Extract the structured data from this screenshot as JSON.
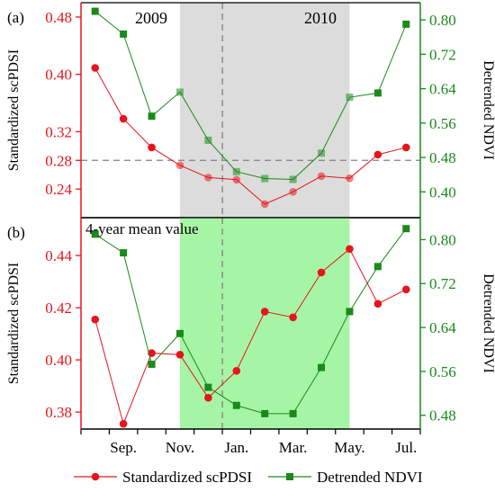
{
  "colors": {
    "pdsi": "#e8141c",
    "ndvi": "#1a8a1a",
    "shade_a": "#dcdcdc",
    "shade_b": "#a6f5a6",
    "ref_line": "#808080"
  },
  "shared": {
    "xtick_labels": [
      "Sep.",
      "Nov.",
      "Jan.",
      "Mar.",
      "May.",
      "Jul."
    ],
    "legend": {
      "pdsi": "Standardized  scPDSI",
      "ndvi": "Detrended  NDVI"
    }
  },
  "chart_data": [
    {
      "type": "line",
      "panel_label": "(a)",
      "ylabel_left": "Standardized  scPDSI",
      "ylabel_right": "Detrended NDVI",
      "ylim_left": [
        0.2,
        0.5
      ],
      "ylim_right": [
        0.34,
        0.84
      ],
      "yticks_left": [
        "0.24",
        "0.28",
        "0.32",
        "0.40",
        "0.48"
      ],
      "yticks_right": [
        "0.40",
        "0.48",
        "0.56",
        "0.64",
        "0.72",
        "0.80"
      ],
      "xticks": [
        "Sep.",
        "Nov.",
        "Jan.",
        "Mar.",
        "May.",
        "Jul."
      ],
      "annotations": [
        "2009",
        "2010"
      ],
      "shaded_range": [
        "Nov.",
        "May."
      ],
      "ref_hline_left": 0.28,
      "ref_vline": "Dec.",
      "categories": [
        "Aug.",
        "Sep.",
        "Oct.",
        "Nov.",
        "Dec.",
        "Jan.",
        "Feb.",
        "Mar.",
        "Apr.",
        "May.",
        "Jun.",
        "Jul."
      ],
      "series": [
        {
          "name": "Standardized  scPDSI",
          "axis": "left",
          "values": [
            0.409,
            0.338,
            0.298,
            0.273,
            0.256,
            0.253,
            0.219,
            0.236,
            0.258,
            0.255,
            0.288,
            0.298
          ]
        },
        {
          "name": "Detrended  NDVI",
          "axis": "right",
          "values": [
            0.82,
            0.767,
            0.576,
            0.632,
            0.52,
            0.447,
            0.431,
            0.429,
            0.49,
            0.62,
            0.63,
            0.79
          ]
        }
      ]
    },
    {
      "type": "line",
      "panel_label": "(b)",
      "ylabel_left": "Standardized  scPDSI",
      "ylabel_right": "Detrended NDVI",
      "ylim_left": [
        0.3735,
        0.4545
      ],
      "ylim_right": [
        0.455,
        0.84
      ],
      "yticks_left": [
        "0.38",
        "0.40",
        "0.42",
        "0.44"
      ],
      "yticks_right": [
        "0.48",
        "0.56",
        "0.64",
        "0.72",
        "0.80"
      ],
      "xticks": [
        "Sep.",
        "Nov.",
        "Jan.",
        "Mar.",
        "May.",
        "Jul."
      ],
      "annotations": [
        "4-year mean value"
      ],
      "shaded_range": [
        "Nov.",
        "May."
      ],
      "ref_vline": "Dec.",
      "categories": [
        "Aug.",
        "Sep.",
        "Oct.",
        "Nov.",
        "Dec.",
        "Jan.",
        "Feb.",
        "Mar.",
        "Apr.",
        "May.",
        "Jun.",
        "Jul."
      ],
      "series": [
        {
          "name": "Standardized  scPDSI",
          "axis": "left",
          "values": [
            0.4155,
            0.3755,
            0.4026,
            0.402,
            0.3855,
            0.3958,
            0.4185,
            0.4163,
            0.4335,
            0.4425,
            0.4215,
            0.427
          ]
        },
        {
          "name": "Detrended  NDVI",
          "axis": "right",
          "values": [
            0.81,
            0.776,
            0.573,
            0.629,
            0.531,
            0.498,
            0.483,
            0.483,
            0.567,
            0.669,
            0.751,
            0.82
          ]
        }
      ]
    }
  ]
}
